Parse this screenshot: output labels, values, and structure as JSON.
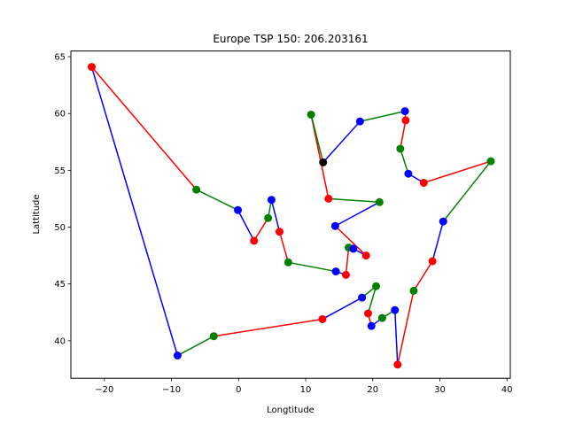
{
  "chart_data": {
    "type": "line",
    "title": "Europe TSP 150: 206.203161",
    "xlabel": "Longtitude",
    "ylabel": "Lattitude",
    "xlim": [
      -25,
      40.5
    ],
    "ylim": [
      36.7,
      65.5
    ],
    "xticks": [
      -20,
      -10,
      0,
      10,
      20,
      30,
      40
    ],
    "yticks": [
      40,
      45,
      50,
      55,
      60,
      65
    ],
    "grid": false,
    "legend": "none",
    "colors": {
      "blue": "#0000ff",
      "red": "#ff0000",
      "green": "#008000",
      "black": "#000000"
    },
    "nodes": [
      {
        "x": 12.6,
        "y": 55.7,
        "color": "black"
      },
      {
        "x": 18.1,
        "y": 59.3,
        "color": "blue"
      },
      {
        "x": 24.8,
        "y": 60.2,
        "color": "blue"
      },
      {
        "x": 24.9,
        "y": 59.4,
        "color": "red"
      },
      {
        "x": 24.1,
        "y": 56.9,
        "color": "green"
      },
      {
        "x": 25.3,
        "y": 54.7,
        "color": "blue"
      },
      {
        "x": 27.6,
        "y": 53.9,
        "color": "red"
      },
      {
        "x": 37.6,
        "y": 55.8,
        "color": "green"
      },
      {
        "x": 30.5,
        "y": 50.5,
        "color": "blue"
      },
      {
        "x": 28.9,
        "y": 47.0,
        "color": "red"
      },
      {
        "x": 26.1,
        "y": 44.4,
        "color": "green"
      },
      {
        "x": 23.7,
        "y": 37.9,
        "color": "red"
      },
      {
        "x": 23.3,
        "y": 42.7,
        "color": "blue"
      },
      {
        "x": 21.4,
        "y": 42.0,
        "color": "green"
      },
      {
        "x": 19.8,
        "y": 41.3,
        "color": "blue"
      },
      {
        "x": 19.3,
        "y": 42.4,
        "color": "red"
      },
      {
        "x": 20.5,
        "y": 44.8,
        "color": "green"
      },
      {
        "x": 18.4,
        "y": 43.8,
        "color": "blue"
      },
      {
        "x": 12.5,
        "y": 41.9,
        "color": "red"
      },
      {
        "x": -3.7,
        "y": 40.4,
        "color": "green"
      },
      {
        "x": -9.1,
        "y": 38.7,
        "color": "blue"
      },
      {
        "x": -21.9,
        "y": 64.1,
        "color": "red"
      },
      {
        "x": -6.3,
        "y": 53.3,
        "color": "green"
      },
      {
        "x": -0.1,
        "y": 51.5,
        "color": "blue"
      },
      {
        "x": 2.3,
        "y": 48.8,
        "color": "red"
      },
      {
        "x": 4.4,
        "y": 50.8,
        "color": "green"
      },
      {
        "x": 4.9,
        "y": 52.4,
        "color": "blue"
      },
      {
        "x": 6.1,
        "y": 49.6,
        "color": "red"
      },
      {
        "x": 7.4,
        "y": 46.9,
        "color": "green"
      },
      {
        "x": 14.5,
        "y": 46.1,
        "color": "blue"
      },
      {
        "x": 16.0,
        "y": 45.8,
        "color": "red"
      },
      {
        "x": 16.4,
        "y": 48.2,
        "color": "green"
      },
      {
        "x": 17.1,
        "y": 48.1,
        "color": "blue"
      },
      {
        "x": 19.0,
        "y": 47.5,
        "color": "red"
      },
      {
        "x": 14.4,
        "y": 50.1,
        "color": "blue"
      },
      {
        "x": 21.0,
        "y": 52.2,
        "color": "green"
      },
      {
        "x": 13.4,
        "y": 52.5,
        "color": "red"
      },
      {
        "x": 10.8,
        "y": 59.9,
        "color": "green"
      }
    ],
    "edges": [
      {
        "from": 0,
        "to": 1,
        "color": "blue"
      },
      {
        "from": 1,
        "to": 2,
        "color": "green"
      },
      {
        "from": 2,
        "to": 3,
        "color": "red"
      },
      {
        "from": 3,
        "to": 4,
        "color": "red"
      },
      {
        "from": 4,
        "to": 5,
        "color": "green"
      },
      {
        "from": 5,
        "to": 6,
        "color": "blue"
      },
      {
        "from": 6,
        "to": 7,
        "color": "red"
      },
      {
        "from": 7,
        "to": 8,
        "color": "green"
      },
      {
        "from": 8,
        "to": 9,
        "color": "blue"
      },
      {
        "from": 9,
        "to": 10,
        "color": "red"
      },
      {
        "from": 10,
        "to": 11,
        "color": "red"
      },
      {
        "from": 11,
        "to": 12,
        "color": "blue"
      },
      {
        "from": 12,
        "to": 13,
        "color": "green"
      },
      {
        "from": 13,
        "to": 14,
        "color": "blue"
      },
      {
        "from": 14,
        "to": 15,
        "color": "red"
      },
      {
        "from": 15,
        "to": 16,
        "color": "green"
      },
      {
        "from": 16,
        "to": 17,
        "color": "green"
      },
      {
        "from": 17,
        "to": 18,
        "color": "blue"
      },
      {
        "from": 18,
        "to": 19,
        "color": "red"
      },
      {
        "from": 19,
        "to": 20,
        "color": "green"
      },
      {
        "from": 20,
        "to": 21,
        "color": "blue"
      },
      {
        "from": 21,
        "to": 22,
        "color": "red"
      },
      {
        "from": 22,
        "to": 23,
        "color": "green"
      },
      {
        "from": 23,
        "to": 24,
        "color": "blue"
      },
      {
        "from": 24,
        "to": 25,
        "color": "red"
      },
      {
        "from": 25,
        "to": 26,
        "color": "green"
      },
      {
        "from": 26,
        "to": 27,
        "color": "blue"
      },
      {
        "from": 27,
        "to": 28,
        "color": "red"
      },
      {
        "from": 28,
        "to": 29,
        "color": "green"
      },
      {
        "from": 29,
        "to": 30,
        "color": "blue"
      },
      {
        "from": 30,
        "to": 31,
        "color": "red"
      },
      {
        "from": 31,
        "to": 32,
        "color": "green"
      },
      {
        "from": 32,
        "to": 33,
        "color": "blue"
      },
      {
        "from": 33,
        "to": 34,
        "color": "red"
      },
      {
        "from": 34,
        "to": 35,
        "color": "blue"
      },
      {
        "from": 35,
        "to": 36,
        "color": "green"
      },
      {
        "from": 36,
        "to": 37,
        "color": "red"
      },
      {
        "from": 37,
        "to": 0,
        "color": "green"
      }
    ]
  }
}
